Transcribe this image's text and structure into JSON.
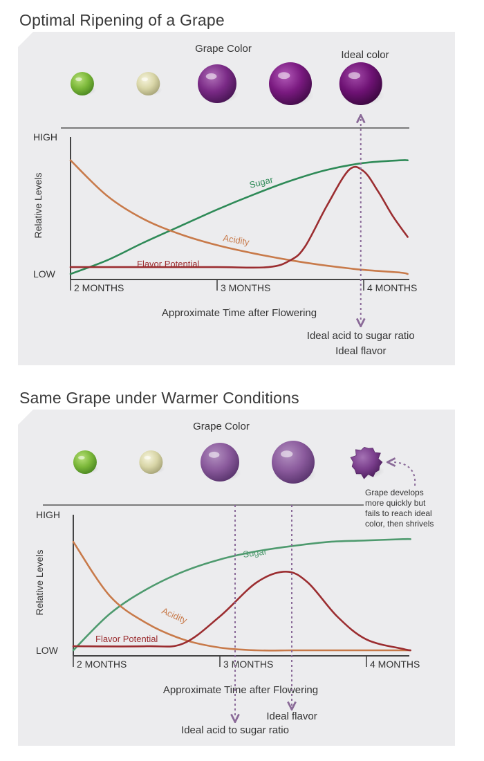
{
  "chart_data": [
    {
      "type": "line",
      "title": "Optimal Ripening of a Grape",
      "section_label": "Grape Color",
      "xlabel": "Approximate Time after Flowering",
      "ylabel": "Relative Levels",
      "y_ticks": [
        "HIGH",
        "LOW"
      ],
      "x_ticks": [
        "2 MONTHS",
        "3 MONTHS",
        "4 MONTHS"
      ],
      "x_range_months": [
        2,
        4.5
      ],
      "y_range": [
        0,
        1
      ],
      "grid": false,
      "grapes": [
        {
          "month": 2.08,
          "color": "green",
          "size": "small"
        },
        {
          "month": 2.53,
          "color": "pale",
          "size": "small"
        },
        {
          "month": 3.0,
          "color": "light-purple",
          "size": "medium"
        },
        {
          "month": 3.5,
          "color": "purple",
          "size": "large"
        },
        {
          "month": 3.98,
          "color": "deep-purple",
          "size": "large"
        }
      ],
      "grape_annotation": "Ideal color",
      "annotation_month": 3.98,
      "annotations_below": [
        "Ideal acid to sugar ratio",
        "Ideal flavor"
      ],
      "series": [
        {
          "name": "Sugar",
          "color": "#2e8a57",
          "x": [
            2.0,
            2.25,
            2.5,
            2.75,
            3.0,
            3.25,
            3.5,
            3.75,
            4.0,
            4.25,
            4.3
          ],
          "y": [
            0.0,
            0.1,
            0.23,
            0.35,
            0.47,
            0.58,
            0.68,
            0.76,
            0.81,
            0.83,
            0.83
          ]
        },
        {
          "name": "Acidity",
          "color": "#c87a4a",
          "x": [
            2.0,
            2.25,
            2.5,
            2.75,
            3.0,
            3.25,
            3.5,
            3.75,
            4.0,
            4.25,
            4.3
          ],
          "y": [
            0.83,
            0.57,
            0.4,
            0.29,
            0.21,
            0.15,
            0.1,
            0.06,
            0.03,
            0.01,
            0.0
          ]
        },
        {
          "name": "Flavor Potential",
          "color": "#9b2d30",
          "x": [
            2.0,
            2.5,
            3.0,
            3.35,
            3.5,
            3.6,
            3.75,
            3.9,
            4.0,
            4.1,
            4.2,
            4.3
          ],
          "y": [
            0.05,
            0.05,
            0.05,
            0.05,
            0.1,
            0.2,
            0.5,
            0.76,
            0.75,
            0.6,
            0.42,
            0.27
          ]
        }
      ]
    },
    {
      "type": "line",
      "title": "Same Grape under Warmer Conditions",
      "section_label": "Grape Color",
      "xlabel": "Approximate Time after Flowering",
      "ylabel": "Relative Levels",
      "y_ticks": [
        "HIGH",
        "LOW"
      ],
      "x_ticks": [
        "2 MONTHS",
        "3 MONTHS",
        "4 MONTHS"
      ],
      "x_range_months": [
        2,
        4.5
      ],
      "y_range": [
        0,
        1
      ],
      "grid": false,
      "grapes": [
        {
          "month": 2.08,
          "color": "green",
          "size": "small"
        },
        {
          "month": 2.53,
          "color": "pale",
          "size": "small"
        },
        {
          "month": 3.0,
          "color": "muted-purple",
          "size": "medium"
        },
        {
          "month": 3.5,
          "color": "muted-purple",
          "size": "large"
        },
        {
          "month": 4.0,
          "color": "shriveled",
          "size": "shriveled"
        }
      ],
      "grape_annotation": "Grape develops more quickly but fails to reach ideal color, then shrivels",
      "grape_annotation_lines": [
        "Grape develops",
        "more quickly but",
        "fails to reach ideal",
        "color, then shrivels"
      ],
      "annotations_below": [
        "Ideal acid to sugar ratio",
        "Ideal flavor"
      ],
      "series": [
        {
          "name": "Sugar",
          "color": "#4e9a6e",
          "x": [
            2.0,
            2.25,
            2.5,
            2.75,
            3.0,
            3.25,
            3.5,
            3.75,
            4.0,
            4.25,
            4.3
          ],
          "y": [
            0.0,
            0.27,
            0.45,
            0.58,
            0.67,
            0.73,
            0.77,
            0.8,
            0.81,
            0.82,
            0.82
          ]
        },
        {
          "name": "Acidity",
          "color": "#c87a4a",
          "x": [
            2.0,
            2.25,
            2.5,
            2.75,
            3.0,
            3.25,
            3.5,
            3.75,
            4.0,
            4.25,
            4.3
          ],
          "y": [
            0.8,
            0.4,
            0.2,
            0.08,
            0.02,
            0.0,
            0.0,
            0.0,
            0.0,
            0.0,
            0.0
          ]
        },
        {
          "name": "Flavor Potential",
          "color": "#9b2d30",
          "x": [
            2.0,
            2.5,
            2.75,
            3.0,
            3.25,
            3.45,
            3.6,
            3.8,
            4.0,
            4.25,
            4.3
          ],
          "y": [
            0.03,
            0.03,
            0.05,
            0.25,
            0.5,
            0.58,
            0.5,
            0.25,
            0.08,
            0.01,
            0.0
          ]
        }
      ]
    }
  ]
}
